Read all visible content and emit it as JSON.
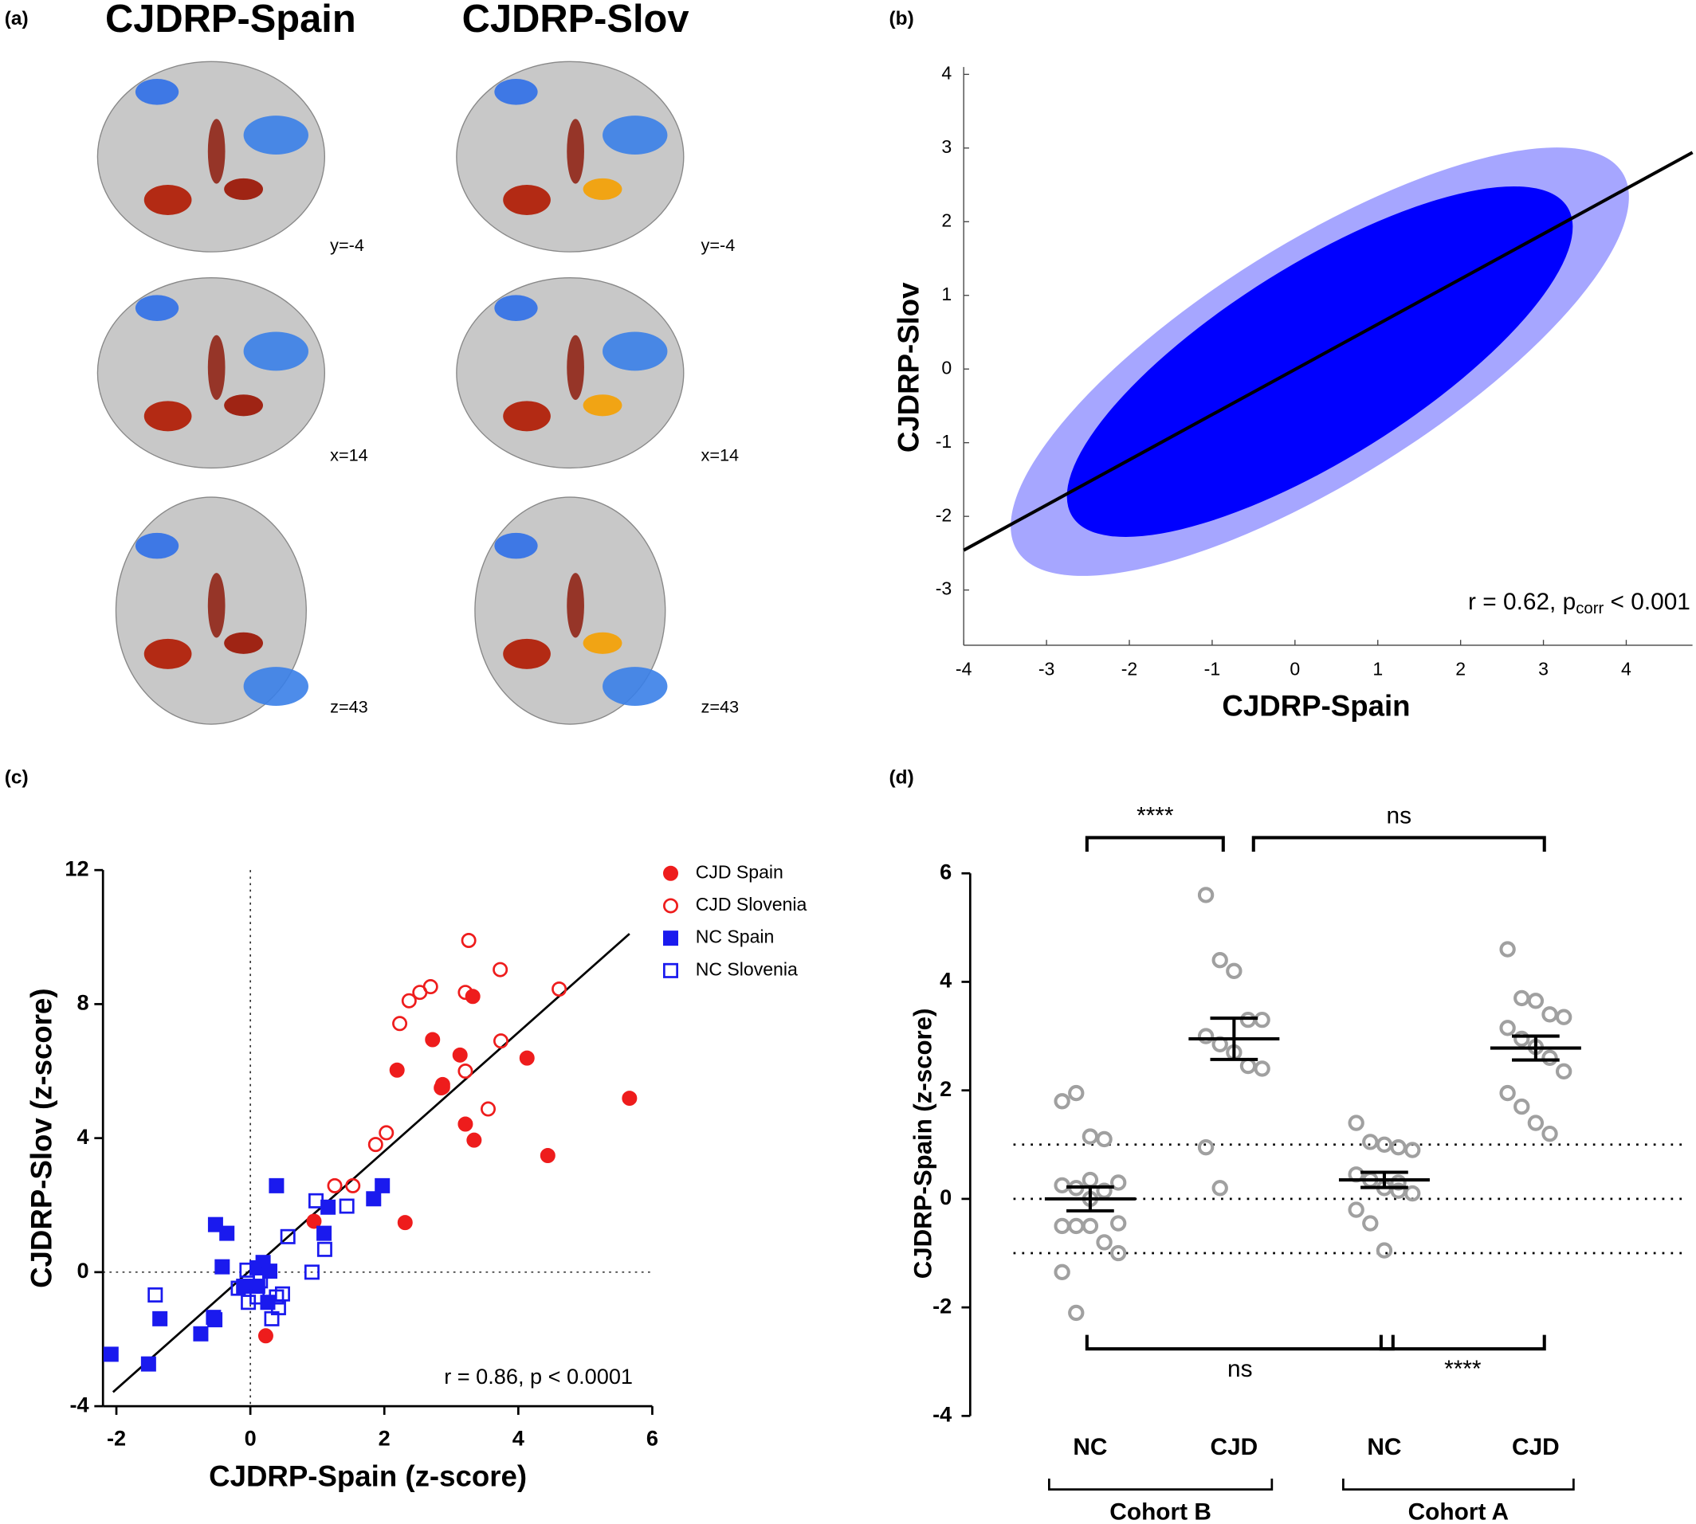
{
  "chart_data": [
    {
      "type": "image",
      "label": "(a)",
      "columns": [
        "CJDRP-Spain",
        "CJDRP-Slov"
      ],
      "slice_labels": [
        [
          "y=-4",
          "x=14",
          "z=43"
        ],
        [
          "y=-4",
          "x=14",
          "z=43"
        ]
      ]
    },
    {
      "type": "cloud",
      "label": "(b)",
      "xlabel": "CJDRP-Spain",
      "ylabel": "CJDRP-Slov",
      "color": "#0000ff",
      "xlim": [
        -4,
        4.8
      ],
      "ylim": [
        -3.75,
        4.1
      ],
      "xticks": [
        -4,
        -3,
        -2,
        -1,
        0,
        1,
        2,
        3,
        4
      ],
      "yticks": [
        -3,
        -2,
        -1,
        0,
        1,
        2,
        3,
        4
      ],
      "fit": {
        "x": [
          -4,
          4.8
        ],
        "y": [
          -2.46,
          2.94
        ]
      },
      "annotation": [
        "r = 0.62, p",
        "corr",
        " < 0.001"
      ]
    },
    {
      "type": "scatter",
      "label": "(c)",
      "xlabel": "CJDRP-Spain (z-score)",
      "ylabel": "CJDRP-Slov (z-score)",
      "xlim": [
        -2.2,
        6
      ],
      "ylim": [
        -4,
        12
      ],
      "xticks": [
        -2,
        0,
        2,
        4,
        6
      ],
      "yticks": [
        -4,
        0,
        4,
        8,
        12
      ],
      "annotation": "r = 0.86, p < 0.0001",
      "fit": {
        "x": [
          -2.05,
          5.66
        ],
        "y": [
          -3.58,
          10.1
        ]
      },
      "series": [
        {
          "name": "CJD Spain",
          "color": "#ee1c1c",
          "marker": "circle",
          "filled": true,
          "x": [
            2.19,
            2.72,
            2.87,
            2.85,
            3.13,
            3.32,
            3.21,
            3.34,
            4.13,
            4.44,
            5.66,
            2.31,
            0.95,
            0.23
          ],
          "y": [
            6.03,
            6.94,
            5.6,
            5.5,
            6.48,
            8.23,
            4.42,
            3.94,
            6.39,
            3.48,
            5.19,
            1.48,
            1.52,
            -1.9
          ]
        },
        {
          "name": "CJD Slovenia",
          "color": "#ee1c1c",
          "marker": "circle",
          "filled": false,
          "x": [
            3.26,
            3.73,
            2.69,
            2.53,
            2.37,
            2.23,
            3.21,
            3.21,
            2.87,
            3.74,
            4.61,
            3.55,
            2.03,
            1.87,
            1.53,
            1.26
          ],
          "y": [
            9.9,
            9.03,
            8.52,
            8.35,
            8.1,
            7.42,
            8.35,
            6.0,
            5.52,
            6.9,
            8.45,
            4.87,
            4.16,
            3.81,
            2.58,
            2.58
          ]
        },
        {
          "name": "NC Spain",
          "color": "#1a1aee",
          "marker": "square",
          "filled": true,
          "x": [
            -2.08,
            -1.52,
            -1.35,
            -0.74,
            -0.53,
            -0.55,
            -0.52,
            -0.35,
            -0.42,
            -0.1,
            0.1,
            0.19,
            0.29,
            0.39,
            1.16,
            1.1,
            1.84,
            1.97,
            0.11,
            0.26
          ],
          "y": [
            -2.45,
            -2.74,
            -1.39,
            -1.84,
            -1.42,
            -1.35,
            1.42,
            1.16,
            0.16,
            -0.42,
            0.13,
            0.29,
            0.03,
            2.58,
            1.94,
            1.16,
            2.19,
            2.58,
            -0.42,
            -0.9
          ]
        },
        {
          "name": "NC Slovenia",
          "color": "#1a1aee",
          "marker": "square",
          "filled": false,
          "x": [
            -1.42,
            -0.18,
            -0.05,
            0.15,
            -0.03,
            0.1,
            0.39,
            0.48,
            0.42,
            0.32,
            0.56,
            0.98,
            1.44,
            1.11,
            0.92
          ],
          "y": [
            -0.68,
            -0.48,
            0.06,
            -0.26,
            -0.9,
            -0.74,
            -0.74,
            -0.65,
            -1.06,
            -1.39,
            1.06,
            2.13,
            1.97,
            0.68,
            0.0
          ]
        }
      ]
    },
    {
      "type": "dot",
      "label": "(d)",
      "ylabel": "CJDRP-Spain (z-score)",
      "color": "#a0a0a0",
      "ylim": [
        -4,
        6
      ],
      "yticks": [
        -4,
        -2,
        0,
        2,
        4,
        6
      ],
      "reference_lines": [
        -1,
        0,
        1
      ],
      "categories": [
        "NC",
        "CJD",
        "NC",
        "CJD"
      ],
      "cohorts": [
        {
          "name": "Cohort B",
          "groups": [
            0,
            1
          ]
        },
        {
          "name": "Cohort A",
          "groups": [
            2,
            3
          ]
        }
      ],
      "values": [
        [
          1.8,
          1.95,
          1.15,
          1.1,
          0.3,
          0.25,
          0.2,
          0.35,
          0.15,
          -0.45,
          -0.5,
          -0.5,
          -0.5,
          -0.8,
          -1.0,
          -1.35,
          -2.1,
          0.0
        ],
        [
          5.6,
          4.4,
          4.2,
          3.3,
          3.3,
          3.0,
          2.85,
          2.7,
          2.45,
          2.4,
          0.95,
          0.2
        ],
        [
          1.4,
          1.05,
          1.0,
          0.95,
          0.9,
          0.45,
          0.35,
          0.2,
          0.15,
          0.1,
          -0.2,
          -0.45,
          -0.95,
          0.3
        ],
        [
          4.6,
          3.7,
          3.65,
          3.4,
          3.35,
          3.15,
          2.95,
          2.8,
          2.6,
          2.35,
          1.95,
          1.7,
          1.4,
          1.2
        ]
      ],
      "means": [
        0.0,
        2.95,
        0.35,
        2.78
      ],
      "sem": [
        0.22,
        0.38,
        0.14,
        0.22
      ],
      "comparisons": [
        {
          "label": "****",
          "groups": [
            0,
            1
          ],
          "side": "top"
        },
        {
          "label": "ns",
          "groups": [
            1,
            3
          ],
          "side": "top"
        },
        {
          "label": "ns",
          "groups": [
            0,
            2
          ],
          "side": "bottom"
        },
        {
          "label": "****",
          "groups": [
            2,
            3
          ],
          "side": "bottom"
        }
      ]
    }
  ]
}
